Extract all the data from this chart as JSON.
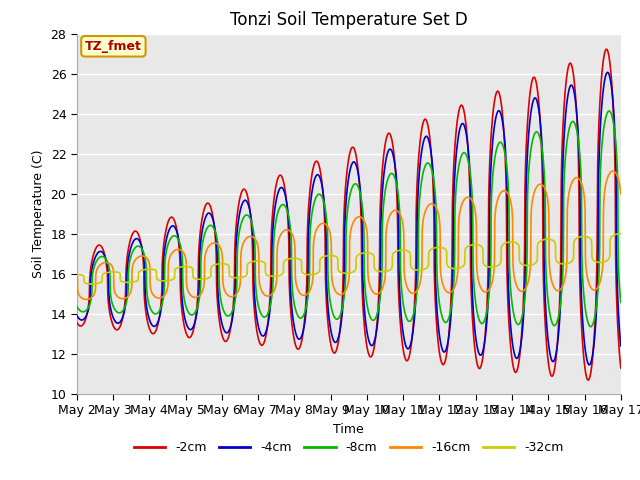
{
  "title": "Tonzi Soil Temperature Set D",
  "xlabel": "Time",
  "ylabel": "Soil Temperature (C)",
  "ylim": [
    10,
    28
  ],
  "xlim": [
    0,
    15
  ],
  "annotation_text": "TZ_fmet",
  "annotation_color": "#aa0000",
  "annotation_bg": "#ffffcc",
  "annotation_border": "#cc9900",
  "background_color": "#e8e8e8",
  "grid_color": "white",
  "series_colors": {
    "-2cm": "#dd0000",
    "-4cm": "#0000cc",
    "-8cm": "#00bb00",
    "-16cm": "#ff8800",
    "-32cm": "#cccc00"
  },
  "x_tick_labels": [
    "May 2",
    "May 3",
    "May 4",
    "May 5",
    "May 6",
    "May 7",
    "May 8",
    "May 9",
    "May 10",
    "May 11",
    "May 12",
    "May 13",
    "May 14",
    "May 15",
    "May 16",
    "May 17"
  ],
  "x_tick_positions": [
    0,
    1,
    2,
    3,
    4,
    5,
    6,
    7,
    8,
    9,
    10,
    11,
    12,
    13,
    14,
    15
  ],
  "yticks": [
    10,
    12,
    14,
    16,
    18,
    20,
    22,
    24,
    26,
    28
  ]
}
